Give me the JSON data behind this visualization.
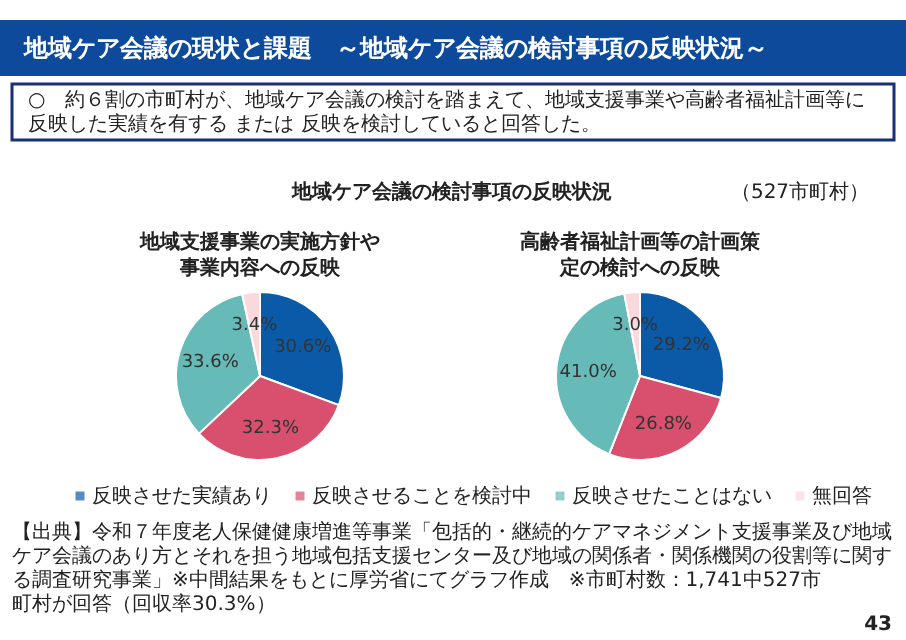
{
  "chart_data": [
    {
      "type": "pie",
      "title": "地域支援事業の実施方針や事業内容への反映",
      "categories": [
        "反映させた実績あり",
        "反映させることを検討中",
        "反映させたことはない",
        "無回答"
      ],
      "values": [
        30.6,
        32.3,
        33.6,
        3.4
      ],
      "colors": [
        "#0b5aa8",
        "#d9506f",
        "#66bab7",
        "#f9d9dd"
      ],
      "value_labels": [
        "30.6%",
        "32.3%",
        "33.6%",
        "3.4%"
      ],
      "legend": "bottom",
      "annotations": [
        "地域ケア会議の現状と課題　～地域ケア会議の検討事項の反映状況～",
        "○　約６割の市町村が、地域ケア会議の検討を踏まえて、地域支援事業や高齢者福祉計画等に反映した実績を有する または 反映を検討していると回答した。",
        "地域ケア会議の検討事項の反映状況",
        "（527市町村）",
        "【出典】令和７年度老人保健健康増進等事業「包括的・継続的ケアマネジメント支援事業及び地域ケア会議のあり方とそれを担う地域包括支援センター及び地域の関係者・関係機関の役割等に関する調査研究事業」※中間結果をもとに厚労省にてグラフ作成　※市町村数：1,741中527市町村が回答（回収率30.3%）",
        "43"
      ]
    },
    {
      "type": "pie",
      "title": "高齢者福祉計画等の計画策定の検討への反映",
      "values": [
        29.2,
        26.8,
        41.0,
        3.0
      ],
      "colors": [
        "#0b5aa8",
        "#d9506f",
        "#66bab7",
        "#f9d9dd"
      ],
      "value_labels": [
        "29.2%",
        "26.8%",
        "41.0%",
        "3.0%"
      ]
    }
  ]
}
